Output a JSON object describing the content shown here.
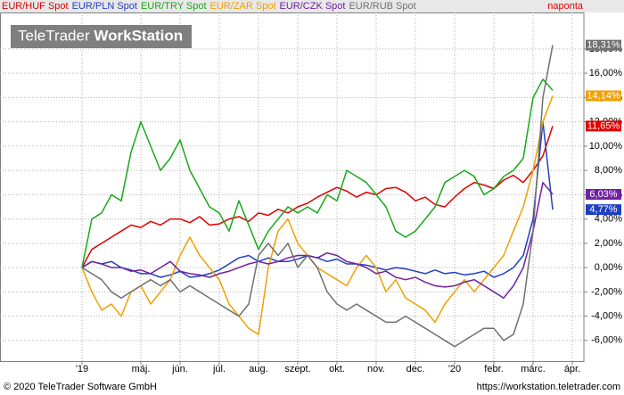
{
  "chart_data": {
    "type": "line",
    "interval": "naponta",
    "watermark_light": "TeleTrader",
    "watermark_bold": "WorkStation",
    "copyright": "© 2020 TeleTrader Software GmbH",
    "url": "https://workstation.teletrader.com",
    "grid": true,
    "categories": [
      "'19",
      null,
      null,
      null,
      null,
      null,
      "máj.",
      null,
      null,
      null,
      "jún.",
      null,
      null,
      null,
      "júl.",
      null,
      null,
      null,
      "aug.",
      null,
      null,
      null,
      "szept.",
      null,
      null,
      null,
      "okt.",
      null,
      null,
      null,
      "nov.",
      null,
      null,
      null,
      "dec.",
      null,
      null,
      null,
      "'20",
      null,
      null,
      null,
      "febr.",
      null,
      null,
      null,
      "márc.",
      null,
      null,
      null,
      "ápr."
    ],
    "ylim": [
      -7.7,
      21
    ],
    "yticks": [
      {
        "value": -6,
        "label": "-6,00%"
      },
      {
        "value": -4,
        "label": "-4,00%"
      },
      {
        "value": -2,
        "label": "-2,00%"
      },
      {
        "value": 0,
        "label": "0,00%"
      },
      {
        "value": 2,
        "label": "2,00%"
      },
      {
        "value": 4,
        "label": "4,00%"
      },
      {
        "value": 6,
        "label": "6,00%"
      },
      {
        "value": 8,
        "label": "8,00%"
      },
      {
        "value": 10,
        "label": "10,00%"
      },
      {
        "value": 12,
        "label": "12,00%"
      },
      {
        "value": 14,
        "label": "14,00%"
      },
      {
        "value": 16,
        "label": "16,00%"
      },
      {
        "value": 18,
        "label": "18,00%"
      }
    ],
    "series": [
      {
        "name": "EUR/HUF Spot",
        "color": "#e00000",
        "last_label": "11,65%",
        "values": [
          0,
          1.5,
          2,
          2.5,
          3,
          3.5,
          3.3,
          3.8,
          3.5,
          4,
          4,
          3.7,
          4.2,
          3.5,
          3.6,
          4,
          4.2,
          3.8,
          4.5,
          4.3,
          4.8,
          4.5,
          5,
          5.3,
          5.8,
          6.2,
          6.6,
          6.3,
          5.8,
          6.2,
          6,
          6.5,
          6.6,
          6.2,
          5.5,
          5.8,
          5.2,
          5,
          5.8,
          6.5,
          7,
          6.8,
          6.5,
          7.2,
          7.6,
          7,
          8,
          9.2,
          11.65,
          null,
          null
        ]
      },
      {
        "name": "EUR/PLN Spot",
        "color": "#2040c0",
        "last_label": "4,77%",
        "values": [
          0,
          0.5,
          0.3,
          0.5,
          0,
          -0.2,
          -0.5,
          -0.5,
          -0.8,
          -0.6,
          -0.3,
          -0.8,
          -0.7,
          -0.5,
          -0.2,
          0.3,
          0.8,
          1,
          0.5,
          0.8,
          0.5,
          0.5,
          0.7,
          1,
          0.8,
          0.5,
          0.7,
          0.3,
          0.3,
          0.2,
          0,
          -0.2,
          0,
          -0.1,
          -0.3,
          -0.5,
          -0.2,
          -0.5,
          -0.4,
          -0.6,
          -0.5,
          -0.3,
          -0.8,
          -0.5,
          0,
          1,
          4,
          12,
          4.77,
          null,
          null
        ]
      },
      {
        "name": "EUR/TRY Spot",
        "color": "#1aa81a",
        "values": [
          0,
          4,
          4.5,
          6,
          5.5,
          9.5,
          12,
          10,
          8,
          9,
          10.5,
          8,
          6.5,
          5,
          4.5,
          3,
          5.5,
          3.5,
          1.5,
          3,
          4,
          5,
          4.5,
          5,
          4.5,
          6,
          5.5,
          8,
          7.5,
          7,
          6,
          5,
          3,
          2.5,
          3,
          4,
          5,
          7,
          7.5,
          8,
          7.5,
          6,
          6.5,
          7.5,
          8,
          9,
          14,
          15.5,
          14.6,
          null,
          null
        ]
      },
      {
        "name": "EUR/ZAR Spot",
        "color": "#f0a000",
        "last_label": "14,14%",
        "values": [
          0,
          -2,
          -3.5,
          -3,
          -4,
          -2,
          -1.5,
          -3,
          -2,
          -1,
          1,
          2.5,
          1,
          0,
          -1,
          -3,
          -4,
          -5,
          -5.5,
          0,
          3,
          4,
          2,
          1,
          0,
          -0.5,
          -1,
          -1.5,
          0,
          1,
          0,
          -2,
          -1,
          -2.5,
          -3,
          -3.5,
          -4.5,
          -3,
          -2,
          -1,
          -2,
          -1,
          0,
          1,
          3,
          5,
          8,
          12,
          14.14,
          null,
          null
        ]
      },
      {
        "name": "EUR/CZK Spot",
        "color": "#7020a0",
        "last_label": "6,03%",
        "values": [
          0,
          0.5,
          0.3,
          0,
          0,
          -0.3,
          -0.2,
          -0.5,
          0,
          0.5,
          -0.3,
          -0.5,
          -0.6,
          -0.8,
          -0.5,
          -0.3,
          0,
          0.3,
          0.5,
          0.3,
          0.5,
          0.8,
          1,
          1,
          0.8,
          1.2,
          1,
          0.5,
          0.3,
          0,
          -0.5,
          -0.3,
          -0.8,
          -1,
          -0.8,
          -1.2,
          -1.5,
          -1.6,
          -1.5,
          -1.2,
          -1,
          -1.5,
          -2,
          -2.5,
          -1.5,
          0,
          3,
          7,
          6.03,
          null,
          null
        ]
      },
      {
        "name": "EUR/RUB Spot",
        "color": "#707070",
        "last_label": "18,31%",
        "values": [
          0,
          -0.5,
          -1,
          -2,
          -2.5,
          -2,
          -1.5,
          -1,
          -1.5,
          -1,
          -2,
          -1.5,
          -2,
          -2.5,
          -3,
          -3.5,
          -4,
          -3,
          1,
          2,
          1,
          2,
          0,
          1,
          0,
          -2,
          -3,
          -3.5,
          -3,
          -3.5,
          -4,
          -4.5,
          -4.5,
          -4,
          -4.5,
          -5,
          -5.5,
          -6,
          -6.5,
          -6,
          -5.5,
          -5,
          -5,
          -6,
          -5.5,
          -3,
          3,
          14,
          18.31,
          null,
          null
        ]
      }
    ]
  }
}
